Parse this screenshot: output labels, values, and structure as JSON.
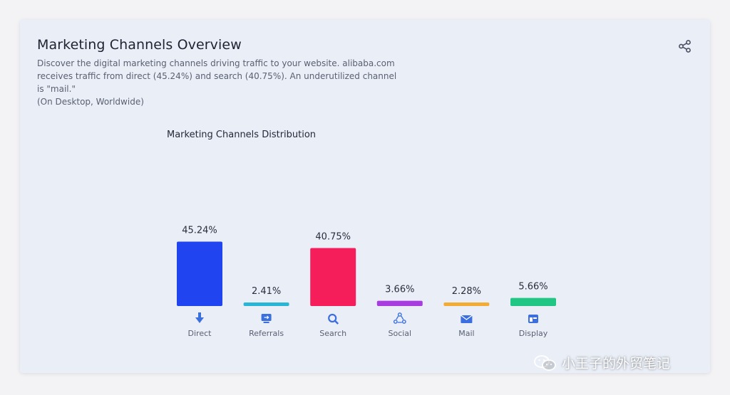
{
  "header": {
    "title": "Marketing Channels Overview",
    "desc_lines": [
      "Discover the digital marketing channels driving traffic to your website. alibaba.com",
      "receives traffic from direct (45.24%) and search (40.75%). An underutilized channel",
      "is \"mail.\"",
      "(On Desktop, Worldwide)"
    ],
    "share_icon": "share-icon"
  },
  "chart_data": {
    "type": "bar",
    "title": "Marketing Channels Distribution",
    "categories": [
      "Direct",
      "Referrals",
      "Search",
      "Social",
      "Mail",
      "Display"
    ],
    "values": [
      45.24,
      2.41,
      40.75,
      3.66,
      2.28,
      5.66
    ],
    "value_labels": [
      "45.24%",
      "2.41%",
      "40.75%",
      "3.66%",
      "2.28%",
      "5.66%"
    ],
    "colors": [
      "#1f44f0",
      "#29b6d6",
      "#f51e5b",
      "#a93ce0",
      "#f2ac33",
      "#22c684"
    ],
    "icons": [
      "direct-icon",
      "referrals-icon",
      "search-icon",
      "social-icon",
      "mail-icon",
      "display-icon"
    ],
    "unit": "%",
    "ylim": [
      0,
      50
    ],
    "grid": false
  },
  "watermark": {
    "text": "小王子的外贸笔记"
  }
}
